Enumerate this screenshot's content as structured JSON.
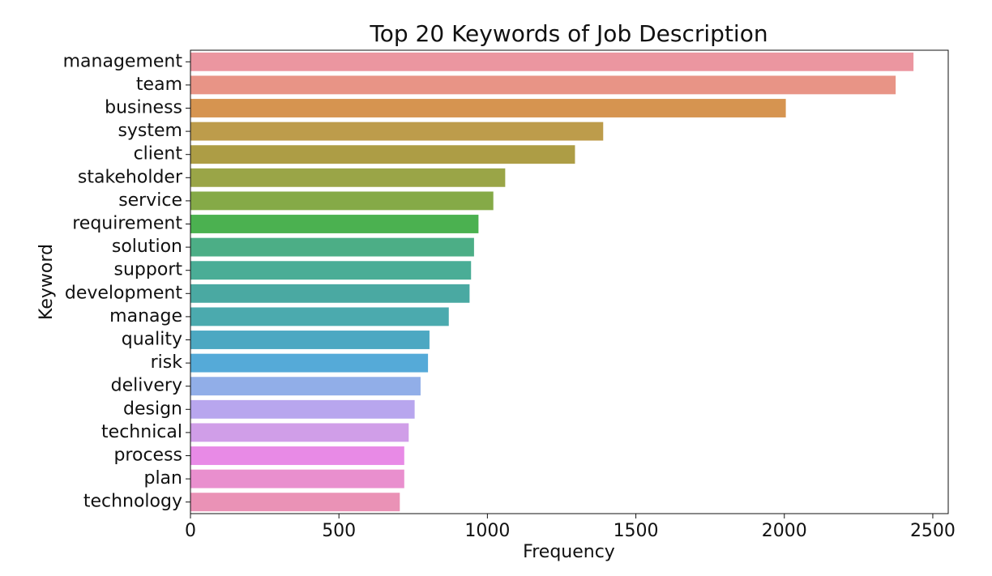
{
  "chart_data": {
    "type": "bar",
    "orientation": "horizontal",
    "title": "Top 20 Keywords of Job Description",
    "x_label": "Frequency",
    "y_label": "Keyword",
    "categories": [
      "management",
      "team",
      "business",
      "system",
      "client",
      "stakeholder",
      "service",
      "requirement",
      "solution",
      "support",
      "development",
      "manage",
      "quality",
      "risk",
      "delivery",
      "design",
      "technical",
      "process",
      "plan",
      "technology"
    ],
    "values": [
      2435,
      2375,
      2005,
      1390,
      1295,
      1060,
      1020,
      970,
      955,
      945,
      940,
      870,
      805,
      800,
      775,
      755,
      735,
      720,
      720,
      705
    ],
    "colors": [
      "#eb96a0",
      "#e89486",
      "#d69450",
      "#bd9c4b",
      "#ad9d45",
      "#9aa547",
      "#85aa47",
      "#4bb150",
      "#4cae86",
      "#4aad96",
      "#4aa9a2",
      "#4baaae",
      "#4ca8c2",
      "#55aad8",
      "#91aee8",
      "#b8a6ee",
      "#d09ee8",
      "#e88ae6",
      "#e98fce",
      "#ea92b6"
    ],
    "xlim": [
      0,
      2552
    ],
    "xticks": [
      0,
      500,
      1000,
      1500,
      2000,
      2500
    ],
    "grid": false
  }
}
